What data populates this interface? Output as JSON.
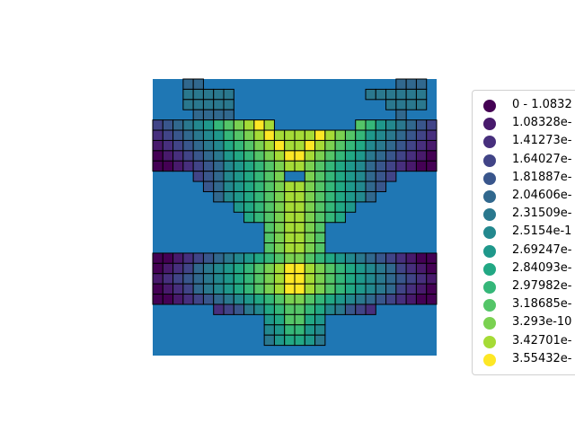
{
  "chart_data": {
    "type": "heatmap",
    "title": "",
    "xlabel": "",
    "ylabel": "",
    "grid": false,
    "axes_visible": false,
    "background_color": "#1f77b4",
    "cell_edge_color": "#000000",
    "colormap": "viridis",
    "legend_position": "right",
    "legend": [
      {
        "label": "0 - 1.0832",
        "color": "#440154"
      },
      {
        "label": "1.08328e-",
        "color": "#481a6c"
      },
      {
        "label": "1.41273e-",
        "color": "#472f7d"
      },
      {
        "label": "1.64027e-",
        "color": "#414487"
      },
      {
        "label": "1.81887e-",
        "color": "#39568c"
      },
      {
        "label": "2.04606e-",
        "color": "#31688e"
      },
      {
        "label": "2.31509e-",
        "color": "#2a788e"
      },
      {
        "label": "2.5154e-1",
        "color": "#23888e"
      },
      {
        "label": "2.69247e-",
        "color": "#1f988b"
      },
      {
        "label": "2.84093e-",
        "color": "#22a884"
      },
      {
        "label": "2.97982e-",
        "color": "#35b779"
      },
      {
        "label": "3.18685e-",
        "color": "#54c568"
      },
      {
        "label": "3.293e-10",
        "color": "#7ad151"
      },
      {
        "label": "3.42701e-",
        "color": "#a5db36"
      },
      {
        "label": "3.55432e-",
        "color": "#fde725"
      }
    ],
    "grid_columns": 28,
    "grid_rows": 27,
    "cells": [
      "...11........................................11...",
      "..1233.....................................13322..",
      "..123456.................................654321..",
      "...1245.................................5421...",
      "12334568BB9A................A9BB8654332",
      "2345679AB9BCD..........DCB9BA9765432",
      "3456789ABBCDEE........EEDCBBA98765443",
      "234568AABCDEEE......EEEDCBAA8654322",
      "01234689BCDEEEEEEEEEEDCB9864321",
      "...13568ABCDEEEEEEEEDCBA86531",
      "......2468ACDEEEEEEDCA8642",
      ".........358BDEEEEDB853",
      "..........47CEEEEC74",
      "...........69DEED96",
      "...........58DEED85",
      "...........69EEEE96",
      "0000112345779CEEEEC9775432110000",
      "1111223456789CEEEEEC98765432211111",
      "2222334567889DEEEEED98876543322222",
      "1111223456789CEEEEEC98765432211111",
      "0000112345779CEEEEC9775432110000",
      "..........69CDEEDC96",
      "..........59BCCB95",
      "..........48AA84",
      "..........3663",
      "............",
      "............"
    ]
  }
}
